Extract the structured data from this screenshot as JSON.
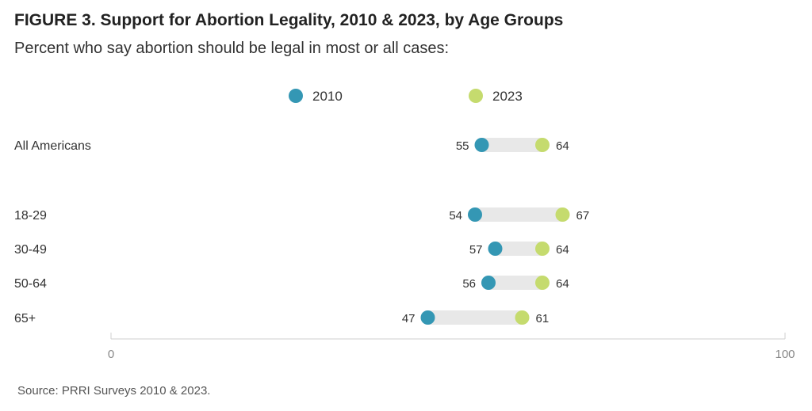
{
  "title": "FIGURE 3. Support for Abortion Legality, 2010 & 2023, by Age Groups",
  "subtitle": "Percent who say abortion should be legal in most or all cases:",
  "source": "Source: PRRI Surveys 2010 & 2023.",
  "chart_data": {
    "type": "dumbbell",
    "title": "FIGURE 3. Support for Abortion Legality, 2010 & 2023, by Age Groups",
    "subtitle": "Percent who say abortion should be legal in most or all cases:",
    "categories": [
      "All Americans",
      "18-29",
      "30-49",
      "50-64",
      "65+"
    ],
    "series": [
      {
        "name": "2010",
        "color": "#3497b4",
        "values": [
          55,
          54,
          57,
          56,
          47
        ]
      },
      {
        "name": "2023",
        "color": "#c5db6e",
        "values": [
          64,
          67,
          64,
          64,
          61
        ]
      }
    ],
    "xlim": [
      0,
      100
    ],
    "x_ticks": [
      0,
      100
    ],
    "legend_position": "top-center",
    "bar_color": "#e8e8e8",
    "grid": false
  }
}
